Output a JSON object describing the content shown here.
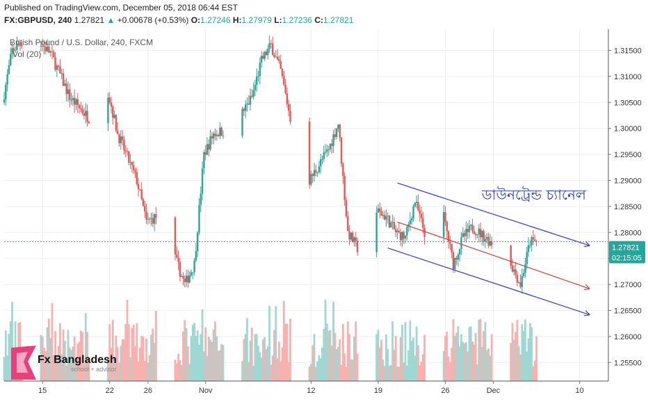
{
  "header": {
    "published": "Published on TradingView.com, December 05, 2018 06:44 EST",
    "symbol": "FX:GBPUSD, 240",
    "last": "1.27821",
    "change_arrow": "▲",
    "change": "+0.00678 (+0.53%)",
    "o_label": "O:",
    "o": "1.27246",
    "h_label": "H:",
    "h": "1.27979",
    "l_label": "L:",
    "l": "1.27236",
    "c_label": "C:",
    "c": "1.27821"
  },
  "pane": {
    "title": "British Pound / U.S. Dollar, 240, FXCM",
    "volume_label": "Vol (20)"
  },
  "annotation": "ডাউনট্রেন্ড চ্যানেল",
  "price_badge": {
    "value": "1.27821",
    "countdown": "02:15:05"
  },
  "logo": {
    "title": "Fx Bangladesh",
    "subtitle": "school + advisor"
  },
  "colors": {
    "up": "#26a69a",
    "down": "#ef5350",
    "vol_up": "#9fd8d2",
    "vol_down": "#f7b1ae",
    "channel": "#2b3bd6",
    "midline": "#d93a3a",
    "badge": "#26a69a"
  },
  "chart_data": {
    "type": "candlestick",
    "y_axis": {
      "ticks": [
        1.315,
        1.31,
        1.305,
        1.3,
        1.295,
        1.29,
        1.285,
        1.28,
        1.275,
        1.27,
        1.265,
        1.26,
        1.255
      ],
      "tick_labels": [
        "1.31500",
        "1.31000",
        "1.30500",
        "1.30000",
        "1.29500",
        "1.29000",
        "1.28500",
        "1.28000",
        "1.27500",
        "1.27000",
        "1.26500",
        "1.26000",
        "1.25500"
      ]
    },
    "x_axis": {
      "tick_labels": [
        "15",
        "22",
        "26",
        "Nov",
        "12",
        "19",
        "26",
        "Dec",
        "10"
      ],
      "tick_dates": [
        "2018-10-15",
        "2018-10-22",
        "2018-10-26",
        "2018-11-01",
        "2018-11-12",
        "2018-11-19",
        "2018-11-26",
        "2018-12-01",
        "2018-12-10"
      ]
    },
    "last_price": 1.27821,
    "price_path": [
      [
        "2018-10-11",
        1.305
      ],
      [
        "2018-10-12",
        1.315
      ],
      [
        "2018-10-14",
        1.318
      ],
      [
        "2018-10-16",
        1.3145
      ],
      [
        "2018-10-18",
        1.306
      ],
      [
        "2018-10-20",
        1.302
      ],
      [
        "2018-10-22",
        1.307
      ],
      [
        "2018-10-23",
        1.299
      ],
      [
        "2018-10-25",
        1.29
      ],
      [
        "2018-10-26",
        1.282
      ],
      [
        "2018-10-27",
        1.283
      ],
      [
        "2018-10-29",
        1.275
      ],
      [
        "2018-10-30",
        1.27
      ],
      [
        "2018-10-31",
        1.274
      ],
      [
        "2018-11-01",
        1.295
      ],
      [
        "2018-11-02",
        1.299
      ],
      [
        "2018-11-04",
        1.3
      ],
      [
        "2018-11-06",
        1.306
      ],
      [
        "2018-11-07",
        1.313
      ],
      [
        "2018-11-08",
        1.316
      ],
      [
        "2018-11-09",
        1.311
      ],
      [
        "2018-11-10",
        1.302
      ],
      [
        "2018-11-11",
        1.298
      ],
      [
        "2018-11-12",
        1.29
      ],
      [
        "2018-11-14",
        1.296
      ],
      [
        "2018-11-15",
        1.301
      ],
      [
        "2018-11-16",
        1.28
      ],
      [
        "2018-11-17",
        1.277
      ],
      [
        "2018-11-18",
        1.282
      ],
      [
        "2018-11-19",
        1.284
      ],
      [
        "2018-11-20",
        1.283
      ],
      [
        "2018-11-21",
        1.28
      ],
      [
        "2018-11-22",
        1.279
      ],
      [
        "2018-11-23",
        1.286
      ],
      [
        "2018-11-24",
        1.28
      ],
      [
        "2018-11-26",
        1.283
      ],
      [
        "2018-11-27",
        1.274
      ],
      [
        "2018-11-28",
        1.279
      ],
      [
        "2018-11-29",
        1.281
      ],
      [
        "2018-12-01",
        1.278
      ],
      [
        "2018-12-02",
        1.276
      ],
      [
        "2018-12-03",
        1.274
      ],
      [
        "2018-12-04",
        1.27
      ],
      [
        "2018-12-05",
        1.27821
      ]
    ],
    "channel": {
      "upper": [
        [
          "2018-11-21",
          1.2895
        ],
        [
          "2018-12-11",
          1.2775
        ]
      ],
      "middle": [
        [
          "2018-11-21",
          1.282
        ],
        [
          "2018-12-11",
          1.2692
        ]
      ],
      "lower": [
        [
          "2018-11-20",
          1.277
        ],
        [
          "2018-12-11",
          1.2642
        ]
      ]
    }
  }
}
